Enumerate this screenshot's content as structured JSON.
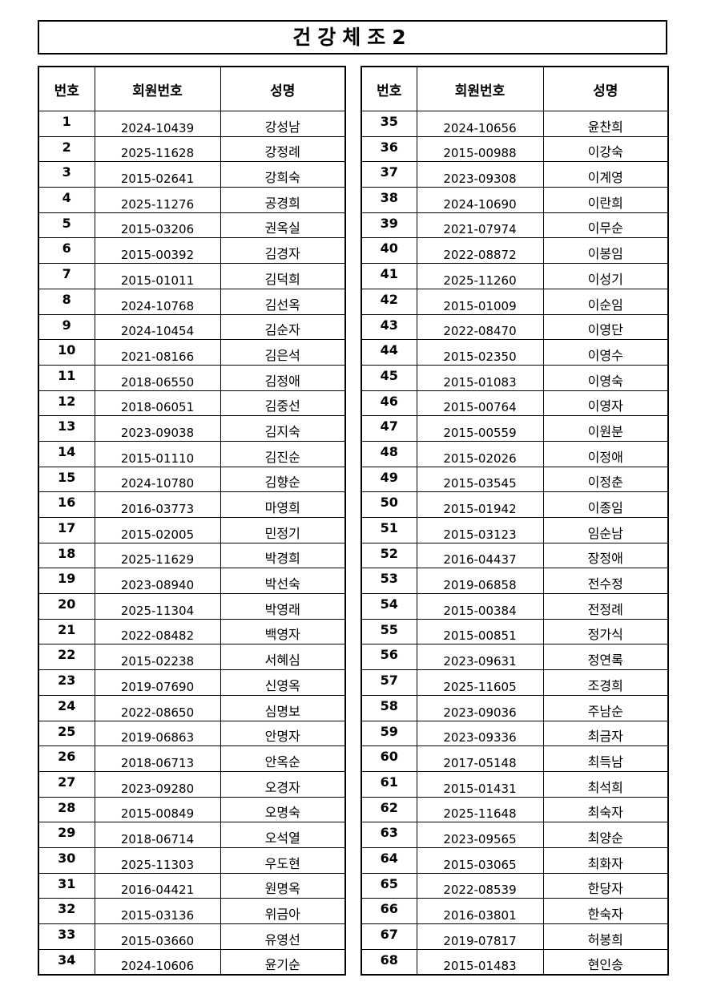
{
  "title": "건강체조2",
  "left_table": {
    "headers": [
      "번호",
      "회원번호",
      "성명"
    ],
    "rows": [
      [
        1,
        "2024-10439",
        "강성남"
      ],
      [
        2,
        "2025-11628",
        "강정례"
      ],
      [
        3,
        "2015-02641",
        "강희숙"
      ],
      [
        4,
        "2025-11276",
        "공경희"
      ],
      [
        5,
        "2015-03206",
        "권옥실"
      ],
      [
        6,
        "2015-00392",
        "김경자"
      ],
      [
        7,
        "2015-01011",
        "김덕희"
      ],
      [
        8,
        "2024-10768",
        "김선옥"
      ],
      [
        9,
        "2024-10454",
        "김순자"
      ],
      [
        10,
        "2021-08166",
        "김은석"
      ],
      [
        11,
        "2018-06550",
        "김정애"
      ],
      [
        12,
        "2018-06051",
        "김중선"
      ],
      [
        13,
        "2023-09038",
        "김지숙"
      ],
      [
        14,
        "2015-01110",
        "김진순"
      ],
      [
        15,
        "2024-10780",
        "김향순"
      ],
      [
        16,
        "2016-03773",
        "마영희"
      ],
      [
        17,
        "2015-02005",
        "민정기"
      ],
      [
        18,
        "2025-11629",
        "박경희"
      ],
      [
        19,
        "2023-08940",
        "박선숙"
      ],
      [
        20,
        "2025-11304",
        "박영래"
      ],
      [
        21,
        "2022-08482",
        "백영자"
      ],
      [
        22,
        "2015-02238",
        "서혜심"
      ],
      [
        23,
        "2019-07690",
        "신영옥"
      ],
      [
        24,
        "2022-08650",
        "심명보"
      ],
      [
        25,
        "2019-06863",
        "안명자"
      ],
      [
        26,
        "2018-06713",
        "안옥순"
      ],
      [
        27,
        "2023-09280",
        "오경자"
      ],
      [
        28,
        "2015-00849",
        "오명숙"
      ],
      [
        29,
        "2018-06714",
        "오석열"
      ],
      [
        30,
        "2025-11303",
        "우도현"
      ],
      [
        31,
        "2016-04421",
        "원명옥"
      ],
      [
        32,
        "2015-03136",
        "위금아"
      ],
      [
        33,
        "2015-03660",
        "유영선"
      ],
      [
        34,
        "2024-10606",
        "윤기순"
      ]
    ]
  },
  "right_table": {
    "headers": [
      "번호",
      "회원번호",
      "성명"
    ],
    "rows": [
      [
        35,
        "2024-10656",
        "윤찬희"
      ],
      [
        36,
        "2015-00988",
        "이강숙"
      ],
      [
        37,
        "2023-09308",
        "이계영"
      ],
      [
        38,
        "2024-10690",
        "이란희"
      ],
      [
        39,
        "2021-07974",
        "이무순"
      ],
      [
        40,
        "2022-08872",
        "이봉임"
      ],
      [
        41,
        "2025-11260",
        "이성기"
      ],
      [
        42,
        "2015-01009",
        "이순임"
      ],
      [
        43,
        "2022-08470",
        "이영단"
      ],
      [
        44,
        "2015-02350",
        "이영수"
      ],
      [
        45,
        "2015-01083",
        "이영숙"
      ],
      [
        46,
        "2015-00764",
        "이영자"
      ],
      [
        47,
        "2015-00559",
        "이원분"
      ],
      [
        48,
        "2015-02026",
        "이정애"
      ],
      [
        49,
        "2015-03545",
        "이정춘"
      ],
      [
        50,
        "2015-01942",
        "이종임"
      ],
      [
        51,
        "2015-03123",
        "임순남"
      ],
      [
        52,
        "2016-04437",
        "장정애"
      ],
      [
        53,
        "2019-06858",
        "전수정"
      ],
      [
        54,
        "2015-00384",
        "전정례"
      ],
      [
        55,
        "2015-00851",
        "정가식"
      ],
      [
        56,
        "2023-09631",
        "정연록"
      ],
      [
        57,
        "2025-11605",
        "조경희"
      ],
      [
        58,
        "2023-09036",
        "주남순"
      ],
      [
        59,
        "2023-09336",
        "최금자"
      ],
      [
        60,
        "2017-05148",
        "최득남"
      ],
      [
        61,
        "2015-01431",
        "최석희"
      ],
      [
        62,
        "2025-11648",
        "최숙자"
      ],
      [
        63,
        "2023-09565",
        "최양순"
      ],
      [
        64,
        "2015-03065",
        "최화자"
      ],
      [
        65,
        "2022-08539",
        "한당자"
      ],
      [
        66,
        "2016-03801",
        "한숙자"
      ],
      [
        67,
        "2019-07817",
        "허봉희"
      ],
      [
        68,
        "2015-01483",
        "현인송"
      ]
    ]
  }
}
